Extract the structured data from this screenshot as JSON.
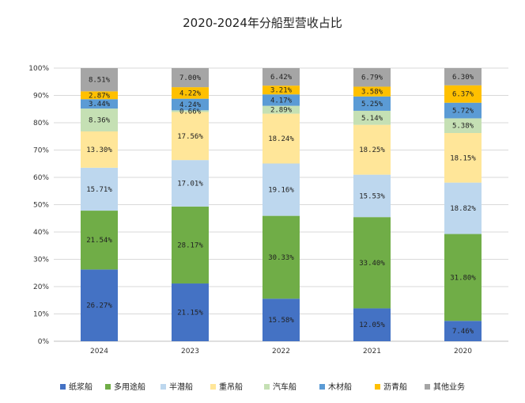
{
  "chart_data": {
    "type": "bar",
    "stacked": true,
    "title": "2020-2024年分船型营收占比",
    "xlabel": "",
    "ylabel": "",
    "ylim": [
      0,
      100
    ],
    "y_ticks": [
      "0%",
      "10%",
      "20%",
      "30%",
      "40%",
      "50%",
      "60%",
      "70%",
      "80%",
      "90%",
      "100%"
    ],
    "grid": true,
    "legend_position": "bottom",
    "categories": [
      "2024",
      "2023",
      "2022",
      "2021",
      "2020"
    ],
    "series": [
      {
        "name": "纸浆船",
        "color": "#4472C4",
        "values": [
          26.27,
          21.15,
          15.58,
          12.05,
          7.46
        ],
        "labels": [
          "26.27%",
          "21.15%",
          "15.58%",
          "12.05%",
          "7.46%"
        ]
      },
      {
        "name": "多用途船",
        "color": "#70AD47",
        "values": [
          21.54,
          28.17,
          30.33,
          33.4,
          31.8
        ],
        "labels": [
          "21.54%",
          "28.17%",
          "30.33%",
          "33.40%",
          "31.80%"
        ]
      },
      {
        "name": "半潜船",
        "color": "#BDD7EE",
        "values": [
          15.71,
          17.01,
          19.16,
          15.53,
          18.82
        ],
        "labels": [
          "15.71%",
          "17.01%",
          "19.16%",
          "15.53%",
          "18.82%"
        ]
      },
      {
        "name": "重吊船",
        "color": "#FFE699",
        "values": [
          13.3,
          17.56,
          18.24,
          18.25,
          18.15
        ],
        "labels": [
          "13.30%",
          "17.56%",
          "18.24%",
          "18.25%",
          "18.15%"
        ]
      },
      {
        "name": "汽车船",
        "color": "#C5E0B4",
        "values": [
          8.36,
          0.66,
          2.89,
          5.14,
          5.38
        ],
        "labels": [
          "8.36%",
          "0.66%",
          "2.89%",
          "5.14%",
          "5.38%"
        ]
      },
      {
        "name": "木材船",
        "color": "#5B9BD5",
        "values": [
          3.44,
          4.24,
          4.17,
          5.25,
          5.72
        ],
        "labels": [
          "3.44%",
          "4.24%",
          "4.17%",
          "5.25%",
          "5.72%"
        ]
      },
      {
        "name": "沥青船",
        "color": "#FFC000",
        "values": [
          2.87,
          4.22,
          3.21,
          3.58,
          6.37
        ],
        "labels": [
          "2.87%",
          "4.22%",
          "3.21%",
          "3.58%",
          "6.37%"
        ]
      },
      {
        "name": "其他业务",
        "color": "#A5A5A5",
        "values": [
          8.51,
          7.0,
          6.42,
          6.79,
          6.3
        ],
        "labels": [
          "8.51%",
          "7.00%",
          "6.42%",
          "6.79%",
          "6.30%"
        ]
      }
    ]
  }
}
